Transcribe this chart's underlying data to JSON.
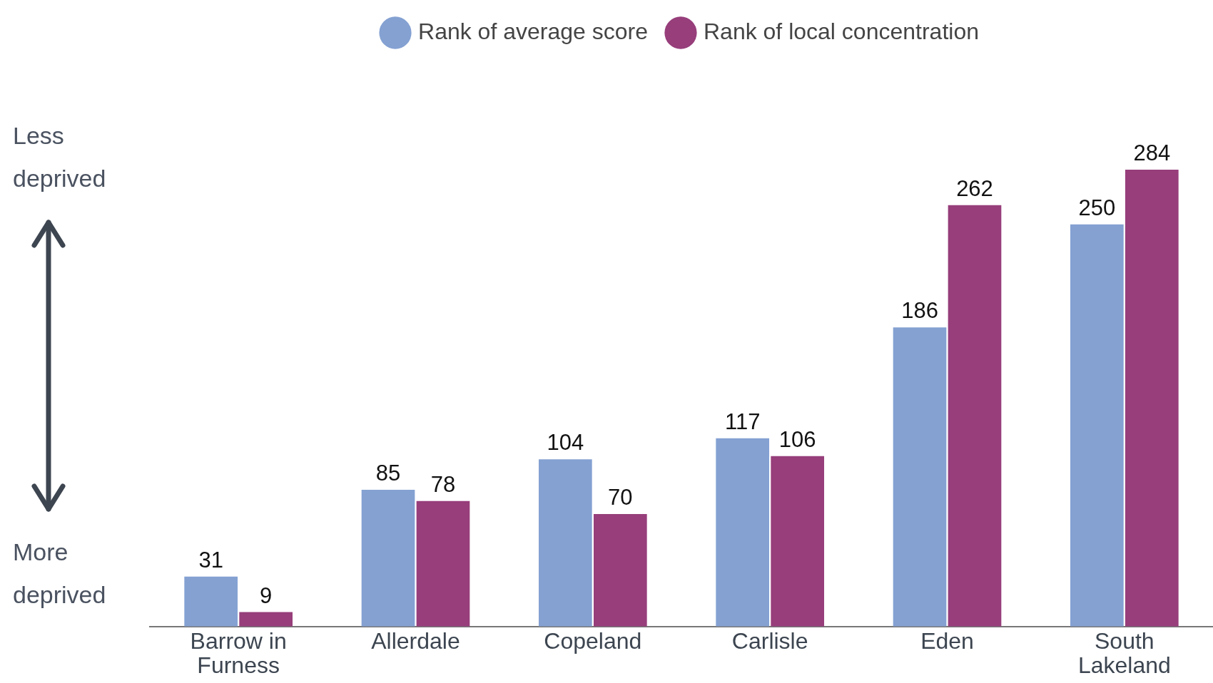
{
  "chart_data": {
    "type": "bar",
    "categories": [
      "Barrow in Furness",
      "Allerdale",
      "Copeland",
      "Carlisle",
      "Eden",
      "South Lakeland"
    ],
    "series": [
      {
        "name": "Rank of average score",
        "color": "#84a1d2",
        "values": [
          31,
          85,
          104,
          117,
          186,
          250
        ]
      },
      {
        "name": "Rank of local concentration",
        "color": "#973e7b",
        "values": [
          9,
          78,
          70,
          106,
          262,
          284
        ]
      }
    ],
    "tick_labels": "x",
    "data_labels": true,
    "legend": "top",
    "annotations": [
      "Less deprived",
      "More deprived"
    ]
  }
}
